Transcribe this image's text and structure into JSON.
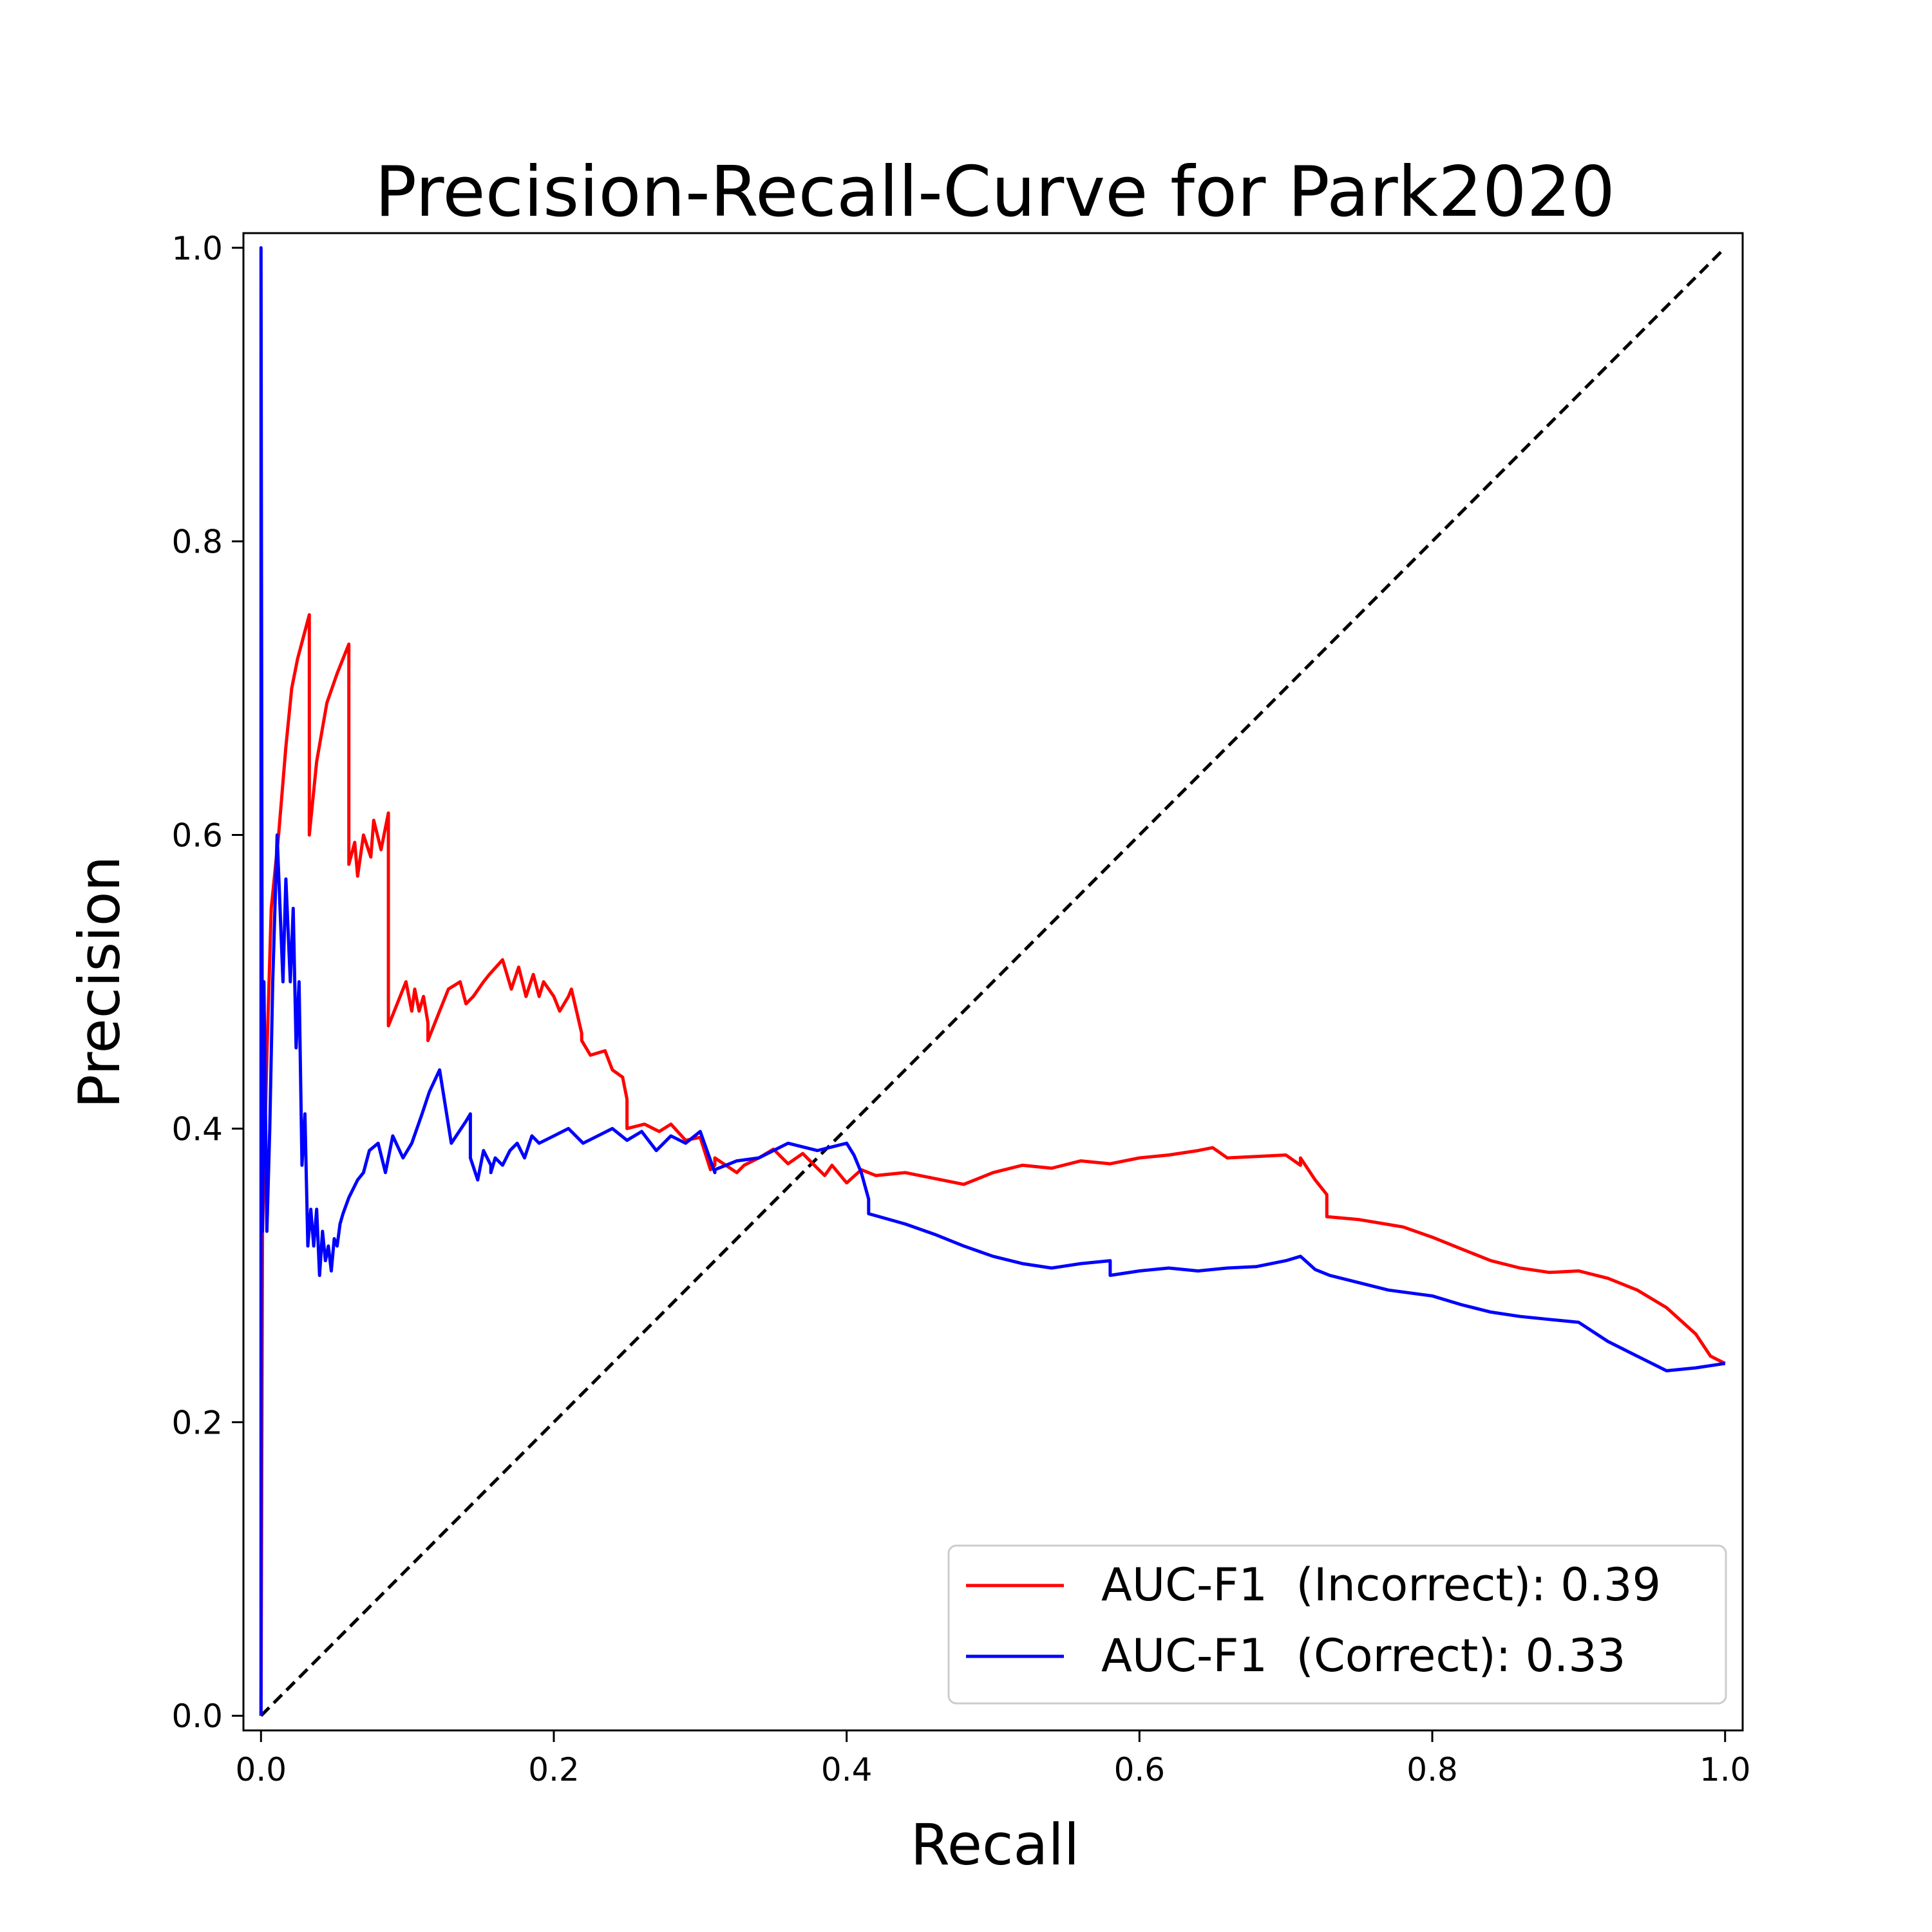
{
  "chart_data": {
    "type": "line",
    "title": "Precision-Recall-Curve for Park2020",
    "xlabel": "Recall",
    "ylabel": "Precision",
    "xlim": [
      -0.012,
      1.012
    ],
    "ylim": [
      -0.01,
      1.01
    ],
    "x_ticks": [
      0.0,
      0.2,
      0.4,
      0.6,
      0.8,
      1.0
    ],
    "x_tick_labels": [
      "0.0",
      "0.2",
      "0.4",
      "0.6",
      "0.8",
      "1.0"
    ],
    "y_ticks": [
      0.0,
      0.2,
      0.4,
      0.6,
      0.8,
      1.0
    ],
    "y_tick_labels": [
      "0.0",
      "0.2",
      "0.4",
      "0.6",
      "0.8",
      "1.0"
    ],
    "grid": false,
    "legend_position": "lower-right",
    "series": [
      {
        "name": "AUC-F1  (Incorrect): 0.39",
        "color": "#ff0000",
        "x": [
          0.0,
          0.001,
          0.004,
          0.007,
          0.012,
          0.017,
          0.021,
          0.025,
          0.029,
          0.033,
          0.033,
          0.038,
          0.045,
          0.052,
          0.06,
          0.06,
          0.064,
          0.066,
          0.07,
          0.075,
          0.077,
          0.082,
          0.087,
          0.087,
          0.095,
          0.099,
          0.103,
          0.105,
          0.108,
          0.111,
          0.114,
          0.114,
          0.122,
          0.128,
          0.136,
          0.14,
          0.145,
          0.152,
          0.156,
          0.165,
          0.171,
          0.176,
          0.181,
          0.186,
          0.19,
          0.193,
          0.2,
          0.204,
          0.21,
          0.212,
          0.219,
          0.219,
          0.225,
          0.235,
          0.24,
          0.247,
          0.25,
          0.25,
          0.262,
          0.272,
          0.28,
          0.29,
          0.3,
          0.307,
          0.31,
          0.31,
          0.325,
          0.33,
          0.34,
          0.35,
          0.36,
          0.37,
          0.38,
          0.385,
          0.39,
          0.4,
          0.41,
          0.42,
          0.44,
          0.46,
          0.48,
          0.5,
          0.52,
          0.54,
          0.56,
          0.58,
          0.6,
          0.62,
          0.64,
          0.65,
          0.66,
          0.7,
          0.71,
          0.71,
          0.72,
          0.728,
          0.728,
          0.75,
          0.78,
          0.8,
          0.82,
          0.84,
          0.86,
          0.88,
          0.9,
          0.92,
          0.94,
          0.96,
          0.98,
          0.99,
          1.0
        ],
        "y": [
          0.0,
          0.33,
          0.45,
          0.55,
          0.6,
          0.66,
          0.7,
          0.72,
          0.735,
          0.75,
          0.6,
          0.65,
          0.69,
          0.71,
          0.73,
          0.58,
          0.595,
          0.572,
          0.6,
          0.585,
          0.61,
          0.59,
          0.615,
          0.47,
          0.49,
          0.5,
          0.48,
          0.495,
          0.48,
          0.49,
          0.472,
          0.46,
          0.48,
          0.495,
          0.5,
          0.485,
          0.49,
          0.5,
          0.505,
          0.515,
          0.495,
          0.51,
          0.49,
          0.505,
          0.49,
          0.5,
          0.49,
          0.48,
          0.49,
          0.495,
          0.465,
          0.46,
          0.45,
          0.453,
          0.44,
          0.435,
          0.42,
          0.4,
          0.403,
          0.398,
          0.403,
          0.392,
          0.394,
          0.372,
          0.375,
          0.38,
          0.37,
          0.375,
          0.38,
          0.386,
          0.376,
          0.383,
          0.373,
          0.368,
          0.375,
          0.363,
          0.372,
          0.368,
          0.37,
          0.366,
          0.362,
          0.37,
          0.375,
          0.373,
          0.378,
          0.376,
          0.38,
          0.382,
          0.385,
          0.387,
          0.38,
          0.382,
          0.375,
          0.38,
          0.365,
          0.355,
          0.34,
          0.338,
          0.333,
          0.326,
          0.318,
          0.31,
          0.305,
          0.302,
          0.303,
          0.298,
          0.29,
          0.278,
          0.26,
          0.245,
          0.24
        ]
      },
      {
        "name": "AUC-F1  (Correct): 0.33",
        "color": "#0000ff",
        "x": [
          0.0,
          0.0,
          0.001,
          0.002,
          0.004,
          0.006,
          0.008,
          0.011,
          0.015,
          0.017,
          0.02,
          0.022,
          0.024,
          0.026,
          0.028,
          0.03,
          0.032,
          0.034,
          0.036,
          0.038,
          0.04,
          0.042,
          0.044,
          0.046,
          0.048,
          0.05,
          0.052,
          0.054,
          0.056,
          0.06,
          0.066,
          0.07,
          0.074,
          0.08,
          0.085,
          0.09,
          0.097,
          0.103,
          0.11,
          0.115,
          0.122,
          0.13,
          0.14,
          0.143,
          0.143,
          0.148,
          0.152,
          0.157,
          0.157,
          0.16,
          0.165,
          0.17,
          0.175,
          0.18,
          0.185,
          0.19,
          0.2,
          0.21,
          0.22,
          0.23,
          0.24,
          0.25,
          0.26,
          0.27,
          0.28,
          0.29,
          0.3,
          0.31,
          0.31,
          0.325,
          0.34,
          0.36,
          0.38,
          0.4,
          0.405,
          0.41,
          0.415,
          0.415,
          0.44,
          0.46,
          0.48,
          0.5,
          0.52,
          0.54,
          0.56,
          0.58,
          0.58,
          0.6,
          0.62,
          0.64,
          0.66,
          0.68,
          0.7,
          0.71,
          0.72,
          0.73,
          0.75,
          0.77,
          0.8,
          0.82,
          0.84,
          0.86,
          0.88,
          0.9,
          0.92,
          0.94,
          0.96,
          0.98,
          1.0
        ],
        "y": [
          0.0,
          1.0,
          0.33,
          0.5,
          0.33,
          0.4,
          0.5,
          0.6,
          0.5,
          0.57,
          0.5,
          0.55,
          0.455,
          0.5,
          0.375,
          0.41,
          0.32,
          0.345,
          0.32,
          0.345,
          0.3,
          0.33,
          0.31,
          0.32,
          0.303,
          0.325,
          0.32,
          0.335,
          0.342,
          0.353,
          0.365,
          0.37,
          0.385,
          0.39,
          0.37,
          0.395,
          0.38,
          0.39,
          0.41,
          0.425,
          0.44,
          0.39,
          0.405,
          0.41,
          0.38,
          0.365,
          0.385,
          0.375,
          0.37,
          0.38,
          0.375,
          0.385,
          0.39,
          0.38,
          0.395,
          0.39,
          0.395,
          0.4,
          0.39,
          0.395,
          0.4,
          0.392,
          0.398,
          0.385,
          0.395,
          0.39,
          0.398,
          0.37,
          0.372,
          0.378,
          0.38,
          0.39,
          0.385,
          0.39,
          0.382,
          0.37,
          0.352,
          0.342,
          0.335,
          0.328,
          0.32,
          0.313,
          0.308,
          0.305,
          0.308,
          0.31,
          0.3,
          0.303,
          0.305,
          0.303,
          0.305,
          0.306,
          0.31,
          0.313,
          0.304,
          0.3,
          0.295,
          0.29,
          0.286,
          0.28,
          0.275,
          0.272,
          0.27,
          0.268,
          0.255,
          0.245,
          0.235,
          0.237,
          0.24
        ]
      },
      {
        "name": "",
        "color": "#000000",
        "dashed": true,
        "x": [
          0.0,
          1.0
        ],
        "y": [
          0.0,
          1.0
        ]
      }
    ]
  }
}
